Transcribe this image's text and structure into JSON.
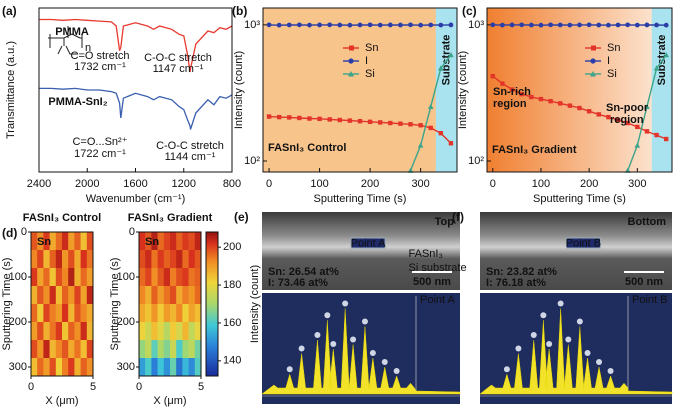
{
  "chart_data": [
    {
      "type": "line",
      "panel": "(a)",
      "xlabel": "Wavenumber (cm⁻¹)",
      "ylabel": "Transmittance (a.u.)",
      "formula_subscript": "n",
      "x": [
        2400,
        2300,
        2200,
        2100,
        2000,
        1900,
        1800,
        1760,
        1732,
        1722,
        1700,
        1600,
        1500,
        1450,
        1400,
        1300,
        1240,
        1200,
        1170,
        1147,
        1144,
        1100,
        1000,
        950,
        900,
        850,
        800
      ],
      "xlim": [
        2400,
        800
      ],
      "xticks": [
        2400,
        2000,
        1600,
        1200,
        800
      ],
      "ylim": [
        0,
        10
      ],
      "series": [
        {
          "name": "PMMA",
          "color": "#e8392f",
          "values": [
            9.3,
            9.3,
            9.25,
            9.3,
            9.25,
            9.2,
            9.15,
            8.9,
            7.4,
            7.6,
            8.9,
            9.1,
            8.9,
            8.7,
            8.9,
            8.7,
            8.4,
            8.3,
            7.2,
            6.1,
            6.3,
            7.8,
            8.6,
            8.5,
            8.8,
            8.7,
            8.9
          ]
        },
        {
          "name": "PMMA-SnI₂",
          "color": "#3a5fb0",
          "values": [
            5.1,
            5.1,
            5.05,
            5.1,
            5.0,
            5.0,
            4.9,
            4.8,
            4.2,
            3.3,
            4.5,
            4.8,
            4.6,
            4.4,
            4.6,
            4.4,
            4.0,
            3.8,
            3.2,
            2.8,
            2.6,
            3.6,
            4.4,
            4.1,
            4.6,
            4.5,
            4.7
          ]
        }
      ],
      "annotations": [
        "C=O stretch",
        "1732 cm⁻¹",
        "C-O-C stretch",
        "1147 cm⁻¹",
        "C=O...Sn²⁺",
        "1722 cm⁻¹",
        "C-O-C stretch",
        "1144 cm⁻¹"
      ]
    },
    {
      "type": "line",
      "panel": "(b)",
      "log_y": true,
      "xlabel": "Sputtering Time (s)",
      "ylabel": "Intensity (count)",
      "x": [
        0,
        20,
        40,
        60,
        80,
        100,
        120,
        140,
        160,
        180,
        200,
        220,
        240,
        260,
        280,
        300,
        320,
        340,
        360
      ],
      "xlim": [
        -12,
        372
      ],
      "xticks": [
        0,
        100,
        200,
        300
      ],
      "ylim": [
        83,
        1330
      ],
      "yticks": [
        {
          "value": 100,
          "label": "10²"
        },
        {
          "value": 1000,
          "label": "10³"
        }
      ],
      "background": "#f7c48c",
      "shaded": {
        "from": 330,
        "label": "Substrate",
        "color": "#a9e3ef"
      },
      "legend": "upper center",
      "annotations": [
        "FASnI₃ Control"
      ],
      "series": [
        {
          "name": "Sn",
          "color": "#e3342a",
          "marker": "square",
          "values": [
            212,
            210,
            209,
            207,
            205,
            204,
            202,
            200,
            198,
            196,
            194,
            192,
            190,
            188,
            186,
            183,
            175,
            160,
            135
          ]
        },
        {
          "name": "I",
          "color": "#2b3ea8",
          "marker": "circle",
          "values": [
            1000,
            995,
            998,
            1000,
            996,
            999,
            1000,
            997,
            995,
            998,
            1000,
            996,
            999,
            997,
            1000,
            995,
            998,
            996,
            999
          ]
        },
        {
          "name": "Si",
          "color": "#3aa58a",
          "marker": "triangle",
          "values": [
            null,
            null,
            null,
            null,
            null,
            null,
            null,
            null,
            null,
            null,
            null,
            null,
            null,
            null,
            85,
            130,
            250,
            480,
            600
          ]
        }
      ]
    },
    {
      "type": "line",
      "panel": "(c)",
      "log_y": true,
      "xlabel": "Sputtering Time (s)",
      "ylabel": "Intensity (count)",
      "x": [
        0,
        20,
        40,
        60,
        80,
        100,
        120,
        140,
        160,
        180,
        200,
        220,
        240,
        260,
        280,
        300,
        320,
        340,
        360
      ],
      "xlim": [
        -12,
        372
      ],
      "xticks": [
        0,
        100,
        200,
        300
      ],
      "ylim": [
        83,
        1330
      ],
      "yticks": [
        {
          "value": 100,
          "label": "10²"
        },
        {
          "value": 1000,
          "label": "10³"
        }
      ],
      "background": [
        "#f07f30",
        "#fdeee0"
      ],
      "shaded": {
        "from": 330,
        "label": "Substrate",
        "color": "#a9e3ef"
      },
      "legend": "upper right",
      "annotations": [
        "Sn-rich",
        "region",
        "Sn-poor",
        "region",
        "FASnI₃ Gradient"
      ],
      "series": [
        {
          "name": "Sn",
          "color": "#e3342a",
          "marker": "square",
          "values": [
            420,
            370,
            335,
            310,
            295,
            285,
            275,
            265,
            255,
            245,
            232,
            220,
            210,
            200,
            190,
            178,
            165,
            155,
            145
          ]
        },
        {
          "name": "I",
          "color": "#2b3ea8",
          "marker": "circle",
          "values": [
            1000,
            996,
            999,
            1000,
            997,
            995,
            1000,
            998,
            996,
            999,
            1000,
            997,
            995,
            998,
            1000,
            996,
            999,
            997,
            995
          ]
        },
        {
          "name": "Si",
          "color": "#3aa58a",
          "marker": "triangle",
          "values": [
            null,
            null,
            null,
            null,
            null,
            null,
            null,
            null,
            null,
            null,
            null,
            null,
            null,
            null,
            85,
            130,
            250,
            480,
            600
          ]
        }
      ]
    },
    {
      "type": "heatmap",
      "panel": "(d)",
      "xlabel": "X (μm)",
      "ylabel": "Sputtering Time (s)",
      "xlim": [
        0,
        5
      ],
      "xticks": [
        0,
        5
      ],
      "ylim": [
        320,
        0
      ],
      "yticks": [
        0,
        100,
        200,
        300
      ],
      "colorbar": {
        "label": "Intensity (count)",
        "lim": [
          132,
          208
        ],
        "ticks": [
          140,
          160,
          180,
          200
        ]
      },
      "maps": [
        {
          "title": "FASnI₃ Control",
          "label": "Sn",
          "values": [
            [
              198,
              192,
              201,
              188,
              196,
              203,
              190,
              197,
              185,
              199
            ],
            [
              193,
              200,
              186,
              197,
              204,
              191,
              199,
              188,
              202,
              195
            ],
            [
              201,
              189,
              196,
              184,
              199,
              193,
              205,
              187,
              196,
              190
            ],
            [
              187,
              198,
              192,
              203,
              185,
              197,
              191,
              200,
              189,
              204
            ],
            [
              196,
              183,
              200,
              194,
              190,
              202,
              186,
              198,
              193,
              188
            ],
            [
              190,
              199,
              187,
              195,
              201,
              184,
              197,
              192,
              203,
              186
            ],
            [
              199,
              191,
              204,
              186,
              193,
              198,
              188,
              195,
              185,
              200
            ],
            [
              185,
              196,
              190,
              199,
              182,
              194,
              201,
              187,
              197,
              192
            ]
          ]
        },
        {
          "title": "FASnI₃ Gradient",
          "label": "Sn",
          "values": [
            [
              202,
              198,
              205,
              196,
              200,
              203,
              197,
              201,
              199,
              204
            ],
            [
              199,
              203,
              195,
              201,
              197,
              200,
              204,
              196,
              202,
              198
            ],
            [
              196,
              200,
              192,
              198,
              203,
              194,
              199,
              201,
              195,
              197
            ],
            [
              193,
              187,
              197,
              190,
              195,
              199,
              188,
              194,
              191,
              196
            ],
            [
              188,
              184,
              191,
              183,
              190,
              186,
              193,
              182,
              189,
              185
            ],
            [
              181,
              176,
              185,
              179,
              172,
              183,
              177,
              186,
              174,
              180
            ],
            [
              168,
              174,
              162,
              171,
              166,
              175,
              160,
              169,
              173,
              164
            ],
            [
              152,
              160,
              147,
              158,
              150,
              163,
              145,
              156,
              149,
              161
            ]
          ]
        }
      ]
    }
  ],
  "images": [
    {
      "panel": "(e)",
      "corner": "Top",
      "point": "Point A",
      "layer": "FASnI₃",
      "substrate": "Si substrate",
      "scale": "500 nm",
      "sn": "Sn: 26.54 at%",
      "i": "I: 73.46 at%",
      "spectrum_point": "Point A"
    },
    {
      "panel": "(f)",
      "corner": "Bottom",
      "point": "Point B",
      "scale": "500 nm",
      "sn": "Sn: 23.82 at%",
      "i": "I: 76.18 at%",
      "spectrum_point": "Point B"
    }
  ]
}
